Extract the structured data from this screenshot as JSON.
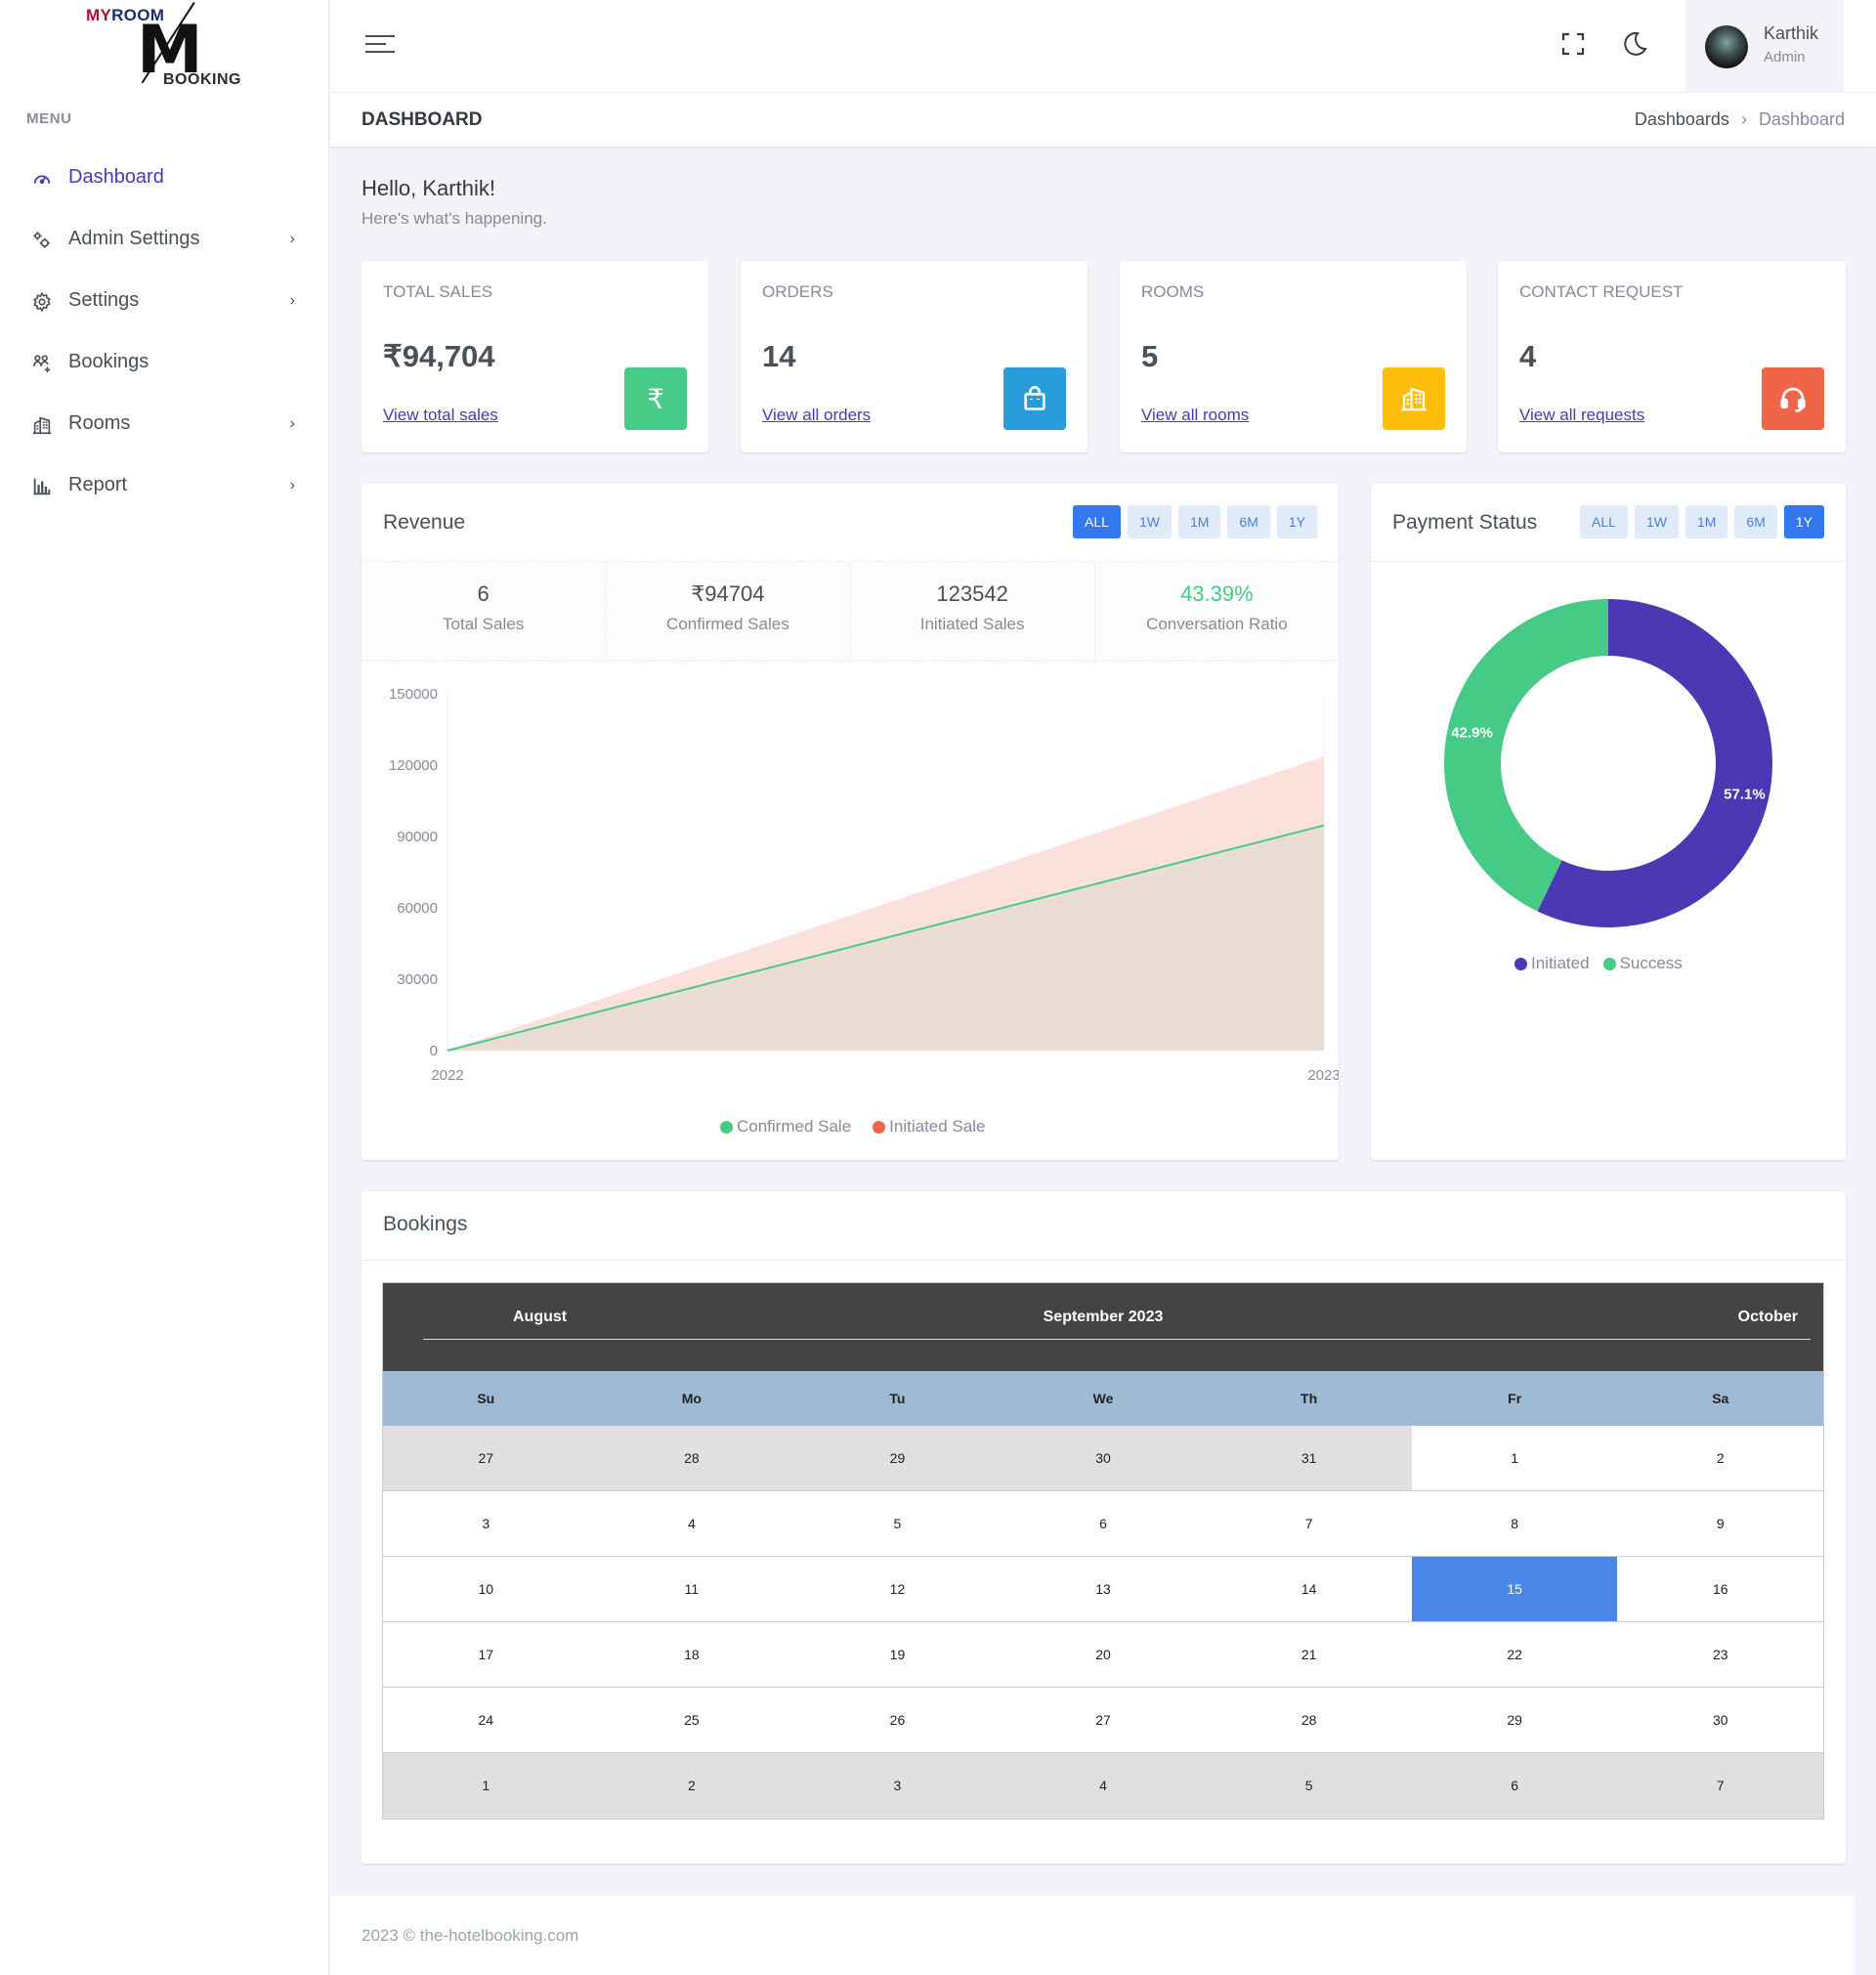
{
  "logo": {
    "top_a": "MY",
    "top_b": "ROOM",
    "letter": "M",
    "bottom": "BOOKING"
  },
  "sidebar": {
    "menu_title": "MENU",
    "items": [
      {
        "label": "Dashboard",
        "icon": "gauge-icon",
        "active": true
      },
      {
        "label": "Admin Settings",
        "icon": "gears-icon",
        "has_submenu": true
      },
      {
        "label": "Settings",
        "icon": "gear-icon",
        "has_submenu": true
      },
      {
        "label": "Bookings",
        "icon": "users-plus-icon"
      },
      {
        "label": "Rooms",
        "icon": "building-icon",
        "has_submenu": true
      },
      {
        "label": "Report",
        "icon": "bar-chart-icon",
        "has_submenu": true
      }
    ],
    "chevron": "›"
  },
  "topbar": {
    "user_name": "Karthik",
    "user_role": "Admin",
    "icons": [
      "hamburger-icon",
      "fullscreen-icon",
      "moon-icon"
    ]
  },
  "page": {
    "title": "DASHBOARD",
    "breadcrumb": [
      "Dashboards",
      "Dashboard"
    ],
    "breadcrumb_sep": "›",
    "greeting": "Hello, Karthik!",
    "subgreeting": "Here's what's happening."
  },
  "kpis": [
    {
      "label": "TOTAL SALES",
      "value": "₹94,704",
      "link": "View total sales",
      "icon": "rupee-icon",
      "color": "#45cb85"
    },
    {
      "label": "ORDERS",
      "value": "14",
      "link": "View all orders",
      "icon": "shopping-bag-icon",
      "color": "#299cdb"
    },
    {
      "label": "ROOMS",
      "value": "5",
      "link": "View all rooms",
      "icon": "building-icon",
      "color": "#ffbe0b"
    },
    {
      "label": "CONTACT REQUEST",
      "value": "4",
      "link": "View all requests",
      "icon": "headset-icon",
      "color": "#f06548"
    }
  ],
  "revenue": {
    "title": "Revenue",
    "tabs": [
      "ALL",
      "1W",
      "1M",
      "6M",
      "1Y"
    ],
    "active_tab": "ALL",
    "stats": [
      {
        "value": "6",
        "label": "Total Sales"
      },
      {
        "value": "₹94704",
        "label": "Confirmed Sales"
      },
      {
        "value": "123542",
        "label": "Initiated Sales"
      },
      {
        "value": "43.39%",
        "label": "Conversation Ratio"
      }
    ]
  },
  "payment": {
    "title": "Payment Status",
    "tabs": [
      "ALL",
      "1W",
      "1M",
      "6M",
      "1Y"
    ],
    "active_tab": "1Y"
  },
  "chart_data": [
    {
      "type": "area",
      "x": [
        "2022",
        "2023"
      ],
      "ylim": [
        0,
        150000
      ],
      "yticks": [
        "150000",
        "120000",
        "90000",
        "60000",
        "30000",
        "0"
      ],
      "series": [
        {
          "name": "Confirmed Sale",
          "values": [
            0,
            94704
          ],
          "color": "#45cb85"
        },
        {
          "name": "Initiated Sale",
          "values": [
            0,
            123542
          ],
          "color": "#f06548"
        }
      ],
      "legend": "bottom"
    },
    {
      "type": "pie",
      "categories": [
        "Initiated",
        "Success"
      ],
      "values": [
        57.1,
        42.9
      ],
      "labels": [
        "57.1%",
        "42.9%"
      ],
      "colors": [
        "#4b38b3",
        "#45cb85"
      ],
      "legend": "bottom"
    }
  ],
  "bookings": {
    "title": "Bookings",
    "calendar": {
      "prev": "August",
      "current": "September 2023",
      "next": "October",
      "days": [
        "Su",
        "Mo",
        "Tu",
        "We",
        "Th",
        "Fr",
        "Sa"
      ],
      "today": "15",
      "rows": [
        [
          "27",
          "28",
          "29",
          "30",
          "31",
          "1",
          "2"
        ],
        [
          "3",
          "4",
          "5",
          "6",
          "7",
          "8",
          "9"
        ],
        [
          "10",
          "11",
          "12",
          "13",
          "14",
          "15",
          "16"
        ],
        [
          "17",
          "18",
          "19",
          "20",
          "21",
          "22",
          "23"
        ],
        [
          "24",
          "25",
          "26",
          "27",
          "28",
          "29",
          "30"
        ],
        [
          "1",
          "2",
          "3",
          "4",
          "5",
          "6",
          "7"
        ]
      ]
    }
  },
  "footer": {
    "text": "2023 © the-hotelbooking.com"
  }
}
